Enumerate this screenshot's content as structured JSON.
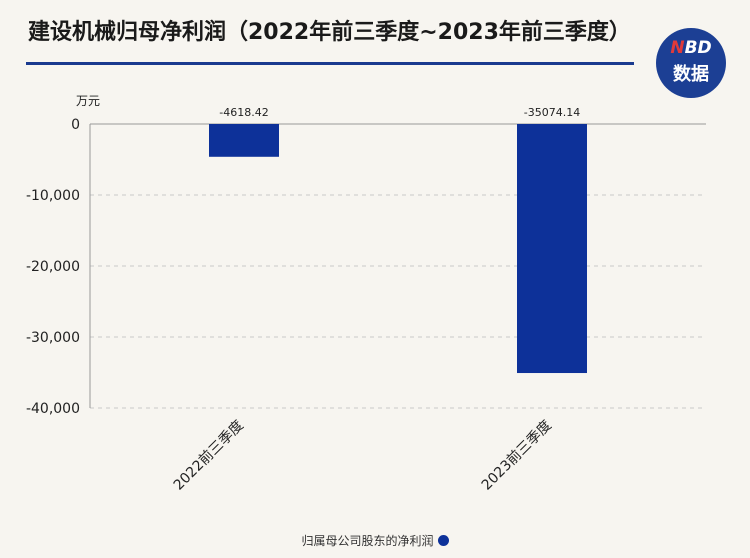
{
  "header": {
    "title": "建设机械归母净利润（2022年前三季度~2023年前三季度）",
    "logo_top": "NBD",
    "logo_bottom": "数据"
  },
  "chart_data": {
    "type": "bar",
    "categories": [
      "2022前三季度",
      "2023前三季度"
    ],
    "series": [
      {
        "name": "归属母公司股东的净利润",
        "values": [
          -4618.42,
          -35074.14
        ]
      }
    ],
    "data_labels": [
      "-4618.42",
      "-35074.14"
    ],
    "ylabel": "万元",
    "ylim": [
      -40000,
      0
    ],
    "yticks": [
      0,
      -10000,
      -20000,
      -30000,
      -40000
    ],
    "ytick_labels": [
      "0",
      "-10,000",
      "-20,000",
      "-30,000",
      "-40,000"
    ],
    "grid": true,
    "legend_position": "bottom-center",
    "bar_color": "#0d3199"
  }
}
